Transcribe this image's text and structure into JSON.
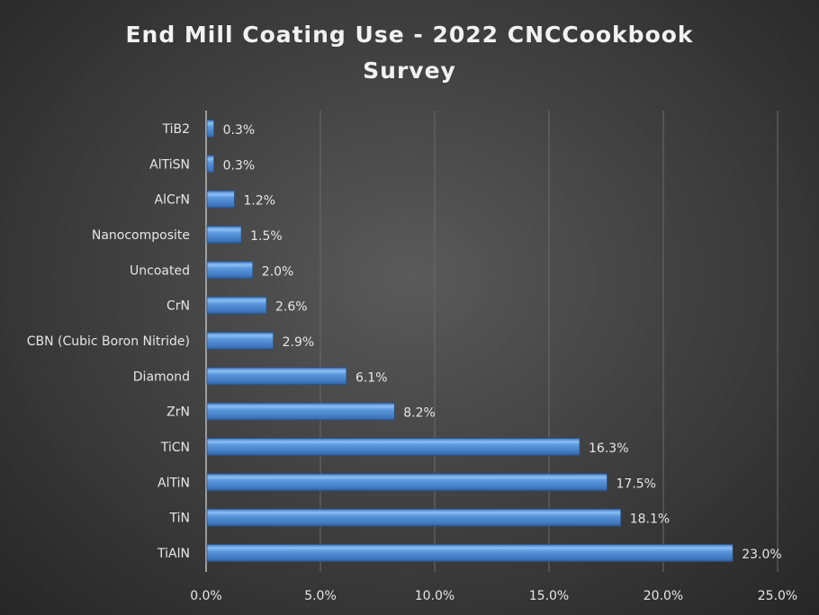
{
  "chart_data": {
    "type": "bar",
    "orientation": "horizontal",
    "title": "End Mill Coating Use - 2022 CNCCookbook Survey",
    "title_lines": [
      "End Mill Coating Use - 2022 CNCCookbook",
      "Survey"
    ],
    "categories": [
      "TiB2",
      "AlTiSN",
      "AlCrN",
      "Nanocomposite",
      "Uncoated",
      "CrN",
      "CBN (Cubic Boron Nitride)",
      "Diamond",
      "ZrN",
      "TiCN",
      "AlTiN",
      "TiN",
      "TiAlN"
    ],
    "values": [
      0.3,
      0.3,
      1.2,
      1.5,
      2.0,
      2.6,
      2.9,
      6.1,
      8.2,
      16.3,
      17.5,
      18.1,
      23.0
    ],
    "data_labels": [
      "0.3%",
      "0.3%",
      "1.2%",
      "1.5%",
      "2.0%",
      "2.6%",
      "2.9%",
      "6.1%",
      "8.2%",
      "16.3%",
      "17.5%",
      "18.1%",
      "23.0%"
    ],
    "xlim": [
      0,
      25
    ],
    "x_ticks": [
      0,
      5,
      10,
      15,
      20,
      25
    ],
    "x_tick_labels": [
      "0.0%",
      "5.0%",
      "10.0%",
      "15.0%",
      "20.0%",
      "25.0%"
    ],
    "xlabel": "",
    "ylabel": "",
    "grid": true,
    "legend": "none",
    "colors": {
      "bar": "#4a86d0",
      "bar_light": "#8cc0f5",
      "bar_dark": "#2f5f9e",
      "background": "#404040",
      "text": "#e6e6e6",
      "grid": "#6a6a6a"
    }
  }
}
